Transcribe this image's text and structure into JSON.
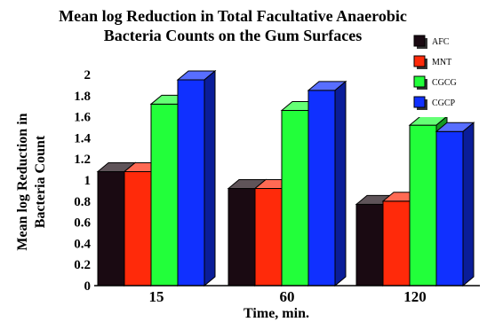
{
  "chart_data": {
    "type": "bar",
    "title": [
      "Mean log Reduction in Total Facultative Anaerobic",
      "Bacteria Counts on the Gum Surfaces"
    ],
    "xlabel": "Time, min.",
    "ylabel": [
      "Mean log Reduction in",
      "Bacteria Count"
    ],
    "categories": [
      "15",
      "60",
      "120"
    ],
    "ylim": [
      0,
      2
    ],
    "yticks": [
      "0",
      "0.2",
      "0.4",
      "0.6",
      "0.8",
      "1",
      "1.2",
      "1.4",
      "1.6",
      "1.8",
      "2"
    ],
    "legend_position": "top-right",
    "series": [
      {
        "name": "AFC",
        "color": "#1a0a12",
        "values": [
          1.08,
          0.92,
          0.77
        ]
      },
      {
        "name": "MNT",
        "color": "#ff2a0a",
        "values": [
          1.08,
          0.92,
          0.8
        ]
      },
      {
        "name": "CGCG",
        "color": "#22ff3a",
        "values": [
          1.72,
          1.66,
          1.52
        ]
      },
      {
        "name": "CGCP",
        "color": "#1030ff",
        "values": [
          1.95,
          1.85,
          1.46
        ]
      }
    ]
  }
}
